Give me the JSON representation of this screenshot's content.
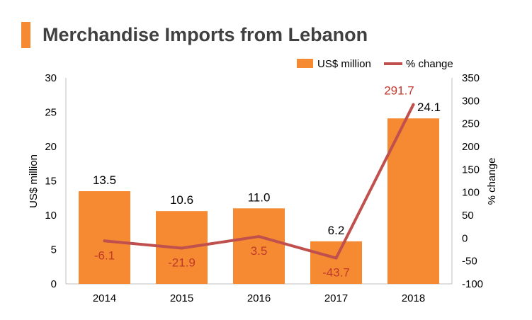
{
  "title": "Merchandise Imports from Lebanon",
  "colors": {
    "accent": "#F58A32",
    "bar": "#F58A32",
    "line": "#C0504D",
    "pct_label": "#C0392B",
    "title": "#404040"
  },
  "chart_data": {
    "type": "bar",
    "categories": [
      "2014",
      "2015",
      "2016",
      "2017",
      "2018"
    ],
    "series": [
      {
        "name": "US$ million",
        "type": "bar",
        "axis": "left",
        "values": [
          13.5,
          10.6,
          11.0,
          6.2,
          24.1
        ],
        "labels": [
          "13.5",
          "10.6",
          "11.0",
          "6.2",
          "24.1"
        ]
      },
      {
        "name": "% change",
        "type": "line",
        "axis": "right",
        "values": [
          -6.1,
          -21.9,
          3.5,
          -43.7,
          291.7
        ],
        "labels": [
          "-6.1",
          "-21.9",
          "3.5",
          "-43.7",
          "291.7"
        ]
      }
    ],
    "ylabel": "US$ million",
    "y2label": "% change",
    "ylim": [
      0,
      30
    ],
    "y2lim": [
      -100,
      350
    ],
    "yticks": [
      "0",
      "5",
      "10",
      "15",
      "20",
      "25",
      "30"
    ],
    "y2ticks": [
      "-100",
      "-50",
      "0",
      "50",
      "100",
      "150",
      "200",
      "250",
      "300",
      "350"
    ],
    "grid": false,
    "legend_position": "top-right"
  }
}
